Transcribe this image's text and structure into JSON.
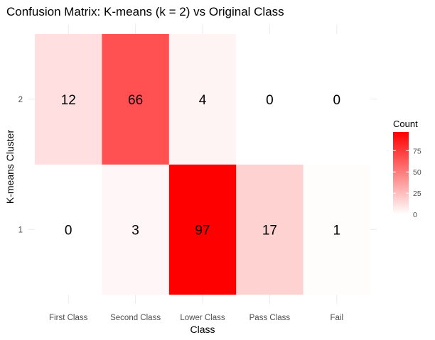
{
  "chart_data": {
    "type": "heatmap",
    "title": "Confusion Matrix: K-means (k = 2) vs Original Class",
    "xlabel": "Class",
    "ylabel": "K-means Cluster",
    "x_categories": [
      "First Class",
      "Second Class",
      "Lower Class",
      "Pass Class",
      "Fail"
    ],
    "y_categories": [
      "1",
      "2"
    ],
    "values": [
      [
        0,
        3,
        97,
        17,
        1
      ],
      [
        12,
        66,
        4,
        0,
        0
      ]
    ],
    "legend": {
      "title": "Count",
      "ticks": [
        0,
        25,
        50,
        75
      ],
      "range": [
        0,
        97
      ],
      "low_color": "#ffffff",
      "high_color": "#ff0000"
    },
    "grid": true,
    "legend_position": "right"
  }
}
